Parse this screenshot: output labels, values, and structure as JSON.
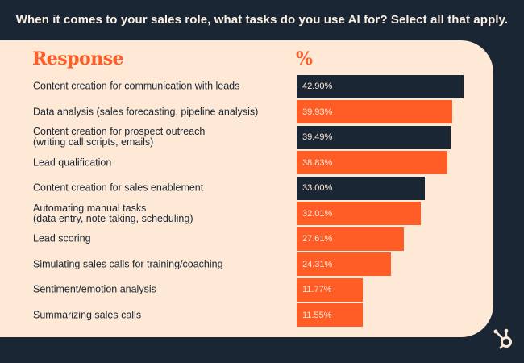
{
  "title": "When it comes to your sales role, what tasks do you use AI for? Select all that apply.",
  "chart_data": {
    "type": "bar",
    "orientation": "horizontal",
    "column_headers": {
      "category": "Response",
      "value": "%"
    },
    "categories": [
      "Content creation for communication with leads",
      "Data analysis (sales forecasting, pipeline analysis)",
      "Content creation for prospect outreach\n(writing call scripts, emails)",
      "Lead qualification",
      "Content creation for sales enablement",
      "Automating manual tasks\n(data entry, note-taking, scheduling)",
      "Lead scoring",
      "Simulating sales calls for training/coaching",
      "Sentiment/emotion analysis",
      "Summarizing sales calls"
    ],
    "values": [
      42.9,
      39.93,
      39.49,
      38.83,
      33.0,
      32.01,
      27.61,
      24.31,
      11.77,
      11.55
    ],
    "value_labels": [
      "42.90%",
      "39.93%",
      "39.49%",
      "38.83%",
      "33.00%",
      "32.01%",
      "27.61%",
      "24.31%",
      "11.77%",
      "11.55%"
    ],
    "bar_colors": [
      "#1a2634",
      "#ff5c26",
      "#1a2634",
      "#ff5c26",
      "#1a2634",
      "#ff5c26",
      "#ff5c26",
      "#ff5c26",
      "#ff5c26",
      "#ff5c26"
    ],
    "grid": false,
    "legend": "none"
  },
  "colors": {
    "background": "#1a2634",
    "panel": "#fde9d5",
    "accent": "#ff5c26"
  },
  "logo": "hubspot-sprocket-icon"
}
